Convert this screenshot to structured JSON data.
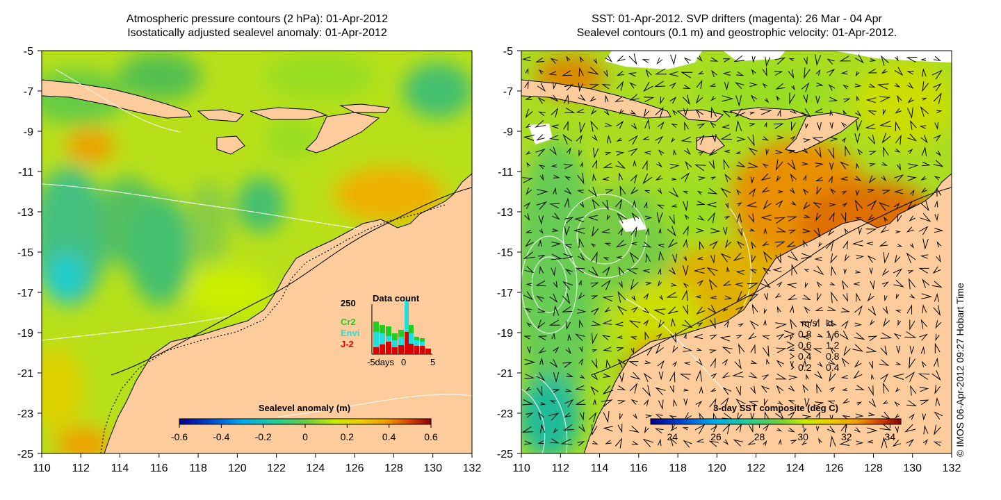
{
  "left_panel": {
    "title_line1": "Atmospheric pressure contours (2 hPa): 01-Apr-2012",
    "title_line2": "Isostatically adjusted sealevel anomaly: 01-Apr-2012",
    "x_ticks": [
      "110",
      "112",
      "114",
      "116",
      "118",
      "120",
      "122",
      "124",
      "126",
      "128",
      "130",
      "132"
    ],
    "y_ticks": [
      "-5",
      "-7",
      "-9",
      "-11",
      "-13",
      "-15",
      "-17",
      "-19",
      "-21",
      "-23",
      "-25"
    ],
    "colorbar": {
      "title": "Sealevel anomaly (m)",
      "ticks": [
        "-0.6",
        "-0.4",
        "-0.2",
        "0",
        "0.2",
        "0.4",
        "0.6"
      ],
      "min": -0.6,
      "max": 0.6
    },
    "inset": {
      "title": "Data count",
      "y_label": "250",
      "x_label_start": "-5days",
      "x_label_mid": "0",
      "x_label_end": "5",
      "legend": [
        {
          "label": "Cr2",
          "color": "#22cc22"
        },
        {
          "label": "Envi",
          "color": "#22dddd"
        },
        {
          "label": "J-2",
          "color": "#dd0000"
        }
      ]
    }
  },
  "right_panel": {
    "title_line1": "SST: 01-Apr-2012. SVP drifters (magenta): 26 Mar - 04 Apr",
    "title_line2": "Sealevel contours (0.1 m) and geostrophic velocity: 01-Apr-2012.",
    "x_ticks": [
      "110",
      "112",
      "114",
      "116",
      "118",
      "120",
      "122",
      "124",
      "126",
      "128",
      "130",
      "132"
    ],
    "y_ticks": [
      "-5",
      "-7",
      "-9",
      "-11",
      "-13",
      "-15",
      "-17",
      "-19",
      "-21",
      "-23",
      "-25"
    ],
    "colorbar": {
      "title": "3-day SST composite (deg C)",
      "ticks": [
        "24",
        "26",
        "28",
        "30",
        "32",
        "34"
      ],
      "min": 23,
      "max": 34.5
    },
    "velocity_legend": {
      "header_ms": "m/s",
      "header_kt": "kt",
      "rows": [
        {
          "ms": "0.8",
          "kt": "1.6"
        },
        {
          "ms": "0.6",
          "kt": "1.2"
        },
        {
          "ms": "0.4",
          "kt": "0.8"
        },
        {
          "ms": "0.2",
          "kt": "0.4"
        }
      ]
    }
  },
  "copyright": "© IMOS 06-Apr-2012 09:27 Hobart Time",
  "colors": {
    "land": "#fccc9c",
    "sla_colormap": [
      "#00008c",
      "#0044cc",
      "#00aaee",
      "#22cccc",
      "#44c080",
      "#66cc44",
      "#99dd22",
      "#ccee00",
      "#eecc00",
      "#f0a000",
      "#e06000",
      "#c02000",
      "#8c0000"
    ],
    "sst_colormap": [
      "#00008c",
      "#0044cc",
      "#00aaee",
      "#22cccc",
      "#44c080",
      "#66cc44",
      "#99dd22",
      "#ccee00",
      "#eecc00",
      "#f0a000",
      "#e06000",
      "#c02000",
      "#8c0000"
    ]
  }
}
